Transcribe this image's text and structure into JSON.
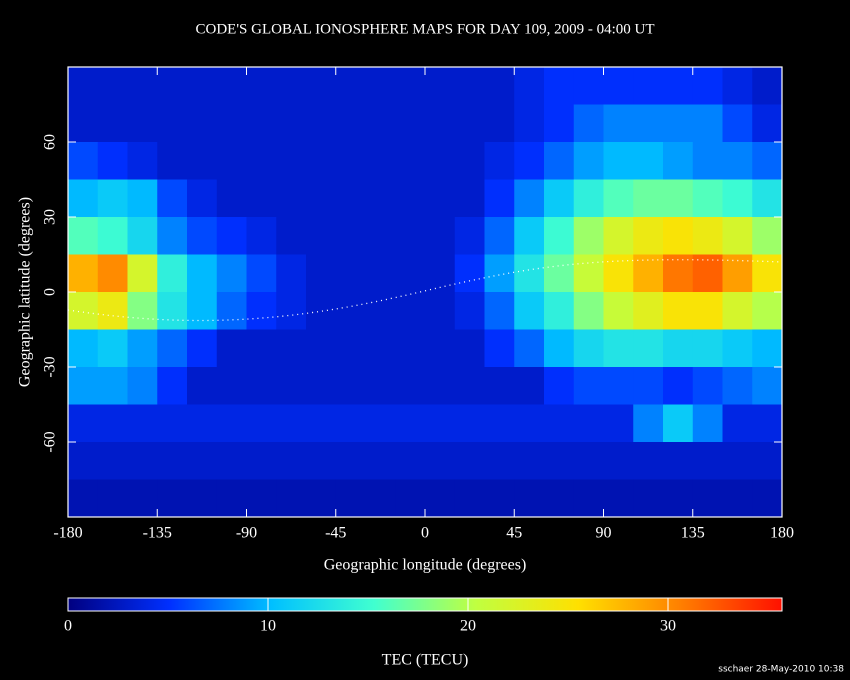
{
  "chart_data": {
    "type": "heatmap",
    "title": "CODE'S GLOBAL IONOSPHERE MAPS FOR DAY 109, 2009 - 04:00 UT",
    "x_label": "Geographic longitude (degrees)",
    "y_label": "Geographic latitude (degrees)",
    "colorbar_label": "TEC (TECU)",
    "footer": "sschaer 28-May-2010 10:38",
    "x": [
      -172.5,
      -157.5,
      -142.5,
      -127.5,
      -112.5,
      -97.5,
      -82.5,
      -67.5,
      -52.5,
      -37.5,
      -22.5,
      -7.5,
      7.5,
      22.5,
      37.5,
      52.5,
      67.5,
      82.5,
      97.5,
      112.5,
      127.5,
      142.5,
      157.5,
      172.5
    ],
    "y": [
      82.5,
      67.5,
      52.5,
      37.5,
      22.5,
      7.5,
      -7.5,
      -22.5,
      -37.5,
      -52.5,
      -67.5,
      -82.5
    ],
    "values": [
      [
        3,
        3,
        3,
        3,
        3,
        3,
        3,
        3,
        3,
        3,
        3,
        3,
        3,
        3,
        3,
        4,
        5,
        5,
        5,
        5,
        5,
        5,
        4,
        3
      ],
      [
        3,
        3,
        3,
        3,
        3,
        3,
        3,
        3,
        3,
        3,
        3,
        3,
        3,
        3,
        3,
        4,
        5,
        7,
        8,
        8,
        8,
        8,
        6,
        4
      ],
      [
        6,
        5,
        4,
        3,
        3,
        3,
        3,
        3,
        3,
        3,
        3,
        3,
        3,
        3,
        4,
        5,
        7,
        9,
        10,
        10,
        9,
        8,
        8,
        7
      ],
      [
        10,
        11,
        10,
        6,
        4,
        3,
        3,
        3,
        3,
        3,
        3,
        3,
        3,
        3,
        5,
        8,
        11,
        14,
        16,
        17,
        17,
        16,
        15,
        13
      ],
      [
        16,
        15,
        12,
        8,
        6,
        5,
        4,
        3,
        3,
        3,
        3,
        3,
        3,
        4,
        7,
        11,
        15,
        19,
        22,
        24,
        25,
        24,
        22,
        19
      ],
      [
        28,
        30,
        22,
        14,
        10,
        8,
        6,
        4,
        3,
        3,
        3,
        3,
        3,
        5,
        9,
        13,
        17,
        21,
        25,
        28,
        31,
        32,
        29,
        25
      ],
      [
        22,
        24,
        18,
        13,
        10,
        7,
        5,
        4,
        3,
        3,
        3,
        3,
        3,
        4,
        7,
        11,
        14,
        18,
        21,
        23,
        25,
        25,
        22,
        20
      ],
      [
        10,
        11,
        9,
        7,
        5,
        3,
        3,
        3,
        3,
        3,
        3,
        3,
        3,
        3,
        5,
        7,
        10,
        12,
        13,
        13,
        12,
        12,
        11,
        10
      ],
      [
        9,
        9,
        8,
        5,
        3,
        3,
        3,
        3,
        3,
        3,
        3,
        3,
        3,
        3,
        3,
        3,
        5,
        6,
        6,
        6,
        5,
        6,
        7,
        8
      ],
      [
        4,
        4,
        4,
        4,
        4,
        4,
        4,
        4,
        4,
        4,
        4,
        4,
        4,
        4,
        4,
        4,
        4,
        4,
        4,
        8,
        11,
        8,
        4,
        4
      ],
      [
        3,
        3,
        3,
        3,
        3,
        3,
        3,
        3,
        3,
        3,
        3,
        3,
        3,
        3,
        3,
        3,
        3,
        3,
        3,
        3,
        3,
        3,
        3,
        3
      ],
      [
        2,
        2,
        2,
        2,
        2,
        2,
        2,
        2,
        2,
        2,
        2,
        2,
        2,
        2,
        2,
        2,
        2,
        2,
        2,
        2,
        2,
        2,
        2,
        2
      ]
    ],
    "cell_width": 15,
    "cell_height": 15,
    "xlim": [
      -180,
      180
    ],
    "ylim": [
      -90,
      90
    ],
    "xticks": [
      -180,
      -135,
      -90,
      -45,
      0,
      45,
      90,
      135,
      180
    ],
    "yticks": [
      -60,
      -30,
      0,
      30,
      60
    ],
    "clim": [
      0,
      35.7
    ],
    "cticks": [
      0,
      10,
      20,
      30
    ],
    "colormap": [
      "#000080",
      "#0030ff",
      "#00c0ff",
      "#40ffd0",
      "#c0ff40",
      "#ffe000",
      "#ff8000",
      "#ff1000"
    ]
  }
}
